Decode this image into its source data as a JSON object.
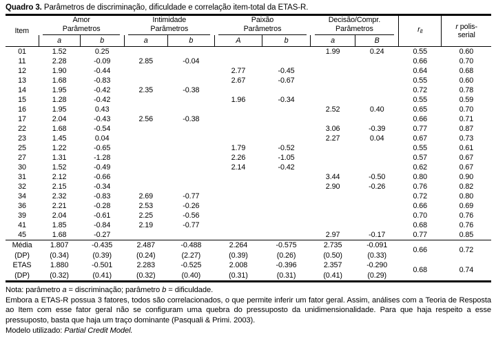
{
  "title": {
    "label": "Quadro 3.",
    "text": " Parâmetros de discriminação, dificuldade e correlação item-total da ETAS-R."
  },
  "header": {
    "item": "Item",
    "groups": [
      {
        "name": "Amor",
        "sub": "Parâmetros",
        "cols": [
          "a",
          "b"
        ]
      },
      {
        "name": "Intimidade",
        "sub": "Parâmetros",
        "cols": [
          "a",
          "b"
        ]
      },
      {
        "name": "Paixão",
        "sub": "Parâmetros",
        "cols": [
          "A",
          "b"
        ]
      },
      {
        "name": "Decisão/Compr.",
        "sub": "Parâmetros",
        "cols": [
          "a",
          "B"
        ]
      }
    ],
    "rit": {
      "r": "r",
      "sub": "it"
    },
    "rpolis": {
      "r": "r",
      "rest": " polis-",
      "line2": "serial"
    }
  },
  "table": {
    "rows": [
      [
        "01",
        "1.52",
        "0.25",
        "",
        "",
        "",
        "",
        "1.99",
        "0.24",
        "0.55",
        "0.60"
      ],
      [
        "11",
        "2.28",
        "-0.09",
        "2.85",
        "-0.04",
        "",
        "",
        "",
        "",
        "0.66",
        "0.70"
      ],
      [
        "12",
        "1.90",
        "-0.44",
        "",
        "",
        "2.77",
        "-0.45",
        "",
        "",
        "0.64",
        "0.68"
      ],
      [
        "13",
        "1.68",
        "-0.83",
        "",
        "",
        "2.67",
        "-0.67",
        "",
        "",
        "0.55",
        "0.60"
      ],
      [
        "14",
        "1.95",
        "-0.42",
        "2.35",
        "-0.38",
        "",
        "",
        "",
        "",
        "0.72",
        "0.78"
      ],
      [
        "15",
        "1.28",
        "-0.42",
        "",
        "",
        "1.96",
        "-0.34",
        "",
        "",
        "0.55",
        "0.59"
      ],
      [
        "16",
        "1.95",
        "0.43",
        "",
        "",
        "",
        "",
        "2.52",
        "0.40",
        "0.65",
        "0.70"
      ],
      [
        "17",
        "2.04",
        "-0.43",
        "2.56",
        "-0.38",
        "",
        "",
        "",
        "",
        "0.66",
        "0.71"
      ],
      [
        "22",
        "1.68",
        "-0.54",
        "",
        "",
        "",
        "",
        "3.06",
        "-0.39",
        "0.77",
        "0.87"
      ],
      [
        "23",
        "1.45",
        "0.04",
        "",
        "",
        "",
        "",
        "2.27",
        "0.04",
        "0.67",
        "0.73"
      ],
      [
        "25",
        "1.22",
        "-0.65",
        "",
        "",
        "1.79",
        "-0.52",
        "",
        "",
        "0.55",
        "0.61"
      ],
      [
        "27",
        "1.31",
        "-1.28",
        "",
        "",
        "2.26",
        "-1.05",
        "",
        "",
        "0.57",
        "0.67"
      ],
      [
        "30",
        "1.52",
        "-0.49",
        "",
        "",
        "2.14",
        "-0.42",
        "",
        "",
        "0.62",
        "0.67"
      ],
      [
        "31",
        "2.12",
        "-0.66",
        "",
        "",
        "",
        "",
        "3.44",
        "-0.50",
        "0.80",
        "0.90"
      ],
      [
        "32",
        "2.15",
        "-0.34",
        "",
        "",
        "",
        "",
        "2.90",
        "-0.26",
        "0.76",
        "0.82"
      ],
      [
        "34",
        "2.32",
        "-0.83",
        "2.69",
        "-0.77",
        "",
        "",
        "",
        "",
        "0.72",
        "0.80"
      ],
      [
        "36",
        "2.21",
        "-0.28",
        "2.53",
        "-0.26",
        "",
        "",
        "",
        "",
        "0.66",
        "0.69"
      ],
      [
        "39",
        "2.04",
        "-0.61",
        "2.25",
        "-0.56",
        "",
        "",
        "",
        "",
        "0.70",
        "0.76"
      ],
      [
        "41",
        "1.85",
        "-0.84",
        "2.19",
        "-0.77",
        "",
        "",
        "",
        "",
        "0.68",
        "0.76"
      ],
      [
        "45",
        "1.68",
        "-0.27",
        "",
        "",
        "",
        "",
        "2.97",
        "-0.17",
        "0.77",
        "0.85"
      ]
    ],
    "summary": [
      {
        "cells": [
          "Média",
          "1.807",
          "-0.435",
          "2.487",
          "-0.488",
          "2.264",
          "-0.575",
          "2.735",
          "-0.091"
        ],
        "rit": "0.66",
        "rpolis": "0.72"
      },
      {
        "cells": [
          "(DP)",
          "(0.34)",
          "(0.39)",
          "(0.24)",
          "(2.27)",
          "(0.39)",
          "(0.26)",
          "(0.50)",
          "(0.33)"
        ]
      },
      {
        "cells": [
          "ETAS",
          "1.880",
          "-0.501",
          "2.283",
          "-0.525",
          "2.008",
          "-0.396",
          "2.357",
          "-0.290"
        ],
        "rit": "0.68",
        "rpolis": "0.74"
      },
      {
        "cells": [
          "(DP)",
          "(0.32)",
          "(0.41)",
          "(0.32)",
          "(0.40)",
          "(0.31)",
          "(0.31)",
          "(0.41)",
          "(0.29)"
        ]
      }
    ]
  },
  "notes": {
    "line1": [
      {
        "t": "Nota: parâmetro "
      },
      {
        "t": "a",
        "i": true
      },
      {
        "t": " = discriminação; parâmetro "
      },
      {
        "t": "b",
        "i": true
      },
      {
        "t": " = dificuldade."
      }
    ],
    "paragraph": "Embora a ETAS-R possua 3 fatores, todos são correlacionados, o que permite inferir um fator geral. Assim, análises com a Teoria de Resposta ao Item com esse fator geral não se configuram uma quebra do pressuposto da unidimensionalidade. Para que haja respeito a esse pressuposto, basta que haja um traço dominante (Pasquali & Primi. 2003).",
    "line3": [
      {
        "t": "Modelo utilizado: "
      },
      {
        "t": "Partial Credit Model.",
        "i": true
      }
    ]
  }
}
